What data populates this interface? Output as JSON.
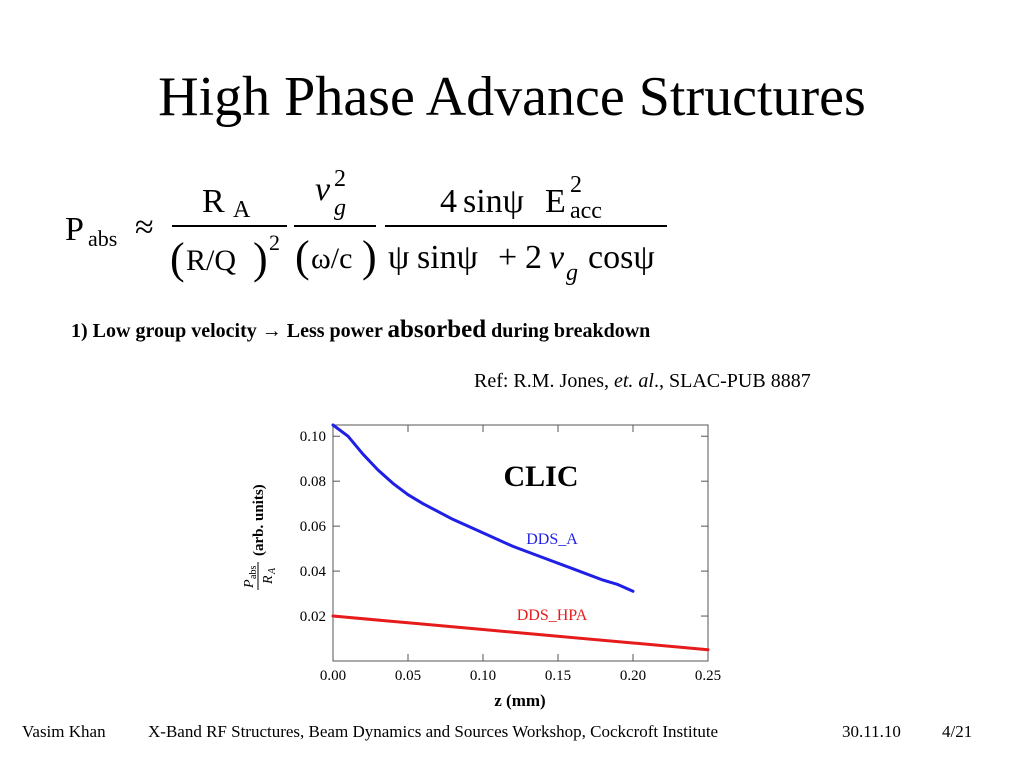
{
  "slide": {
    "title": "High Phase Advance Structures",
    "bullet_prefix": "1) Low group velocity → Less power ",
    "bullet_emph": "absorbed",
    "bullet_suffix": " during breakdown",
    "ref_prefix": "Ref: R.M. Jones, ",
    "ref_italic": "et. al",
    "ref_suffix": "., SLAC-PUB 8887"
  },
  "formula": {
    "lhs_main": "P",
    "lhs_sub": "abs",
    "approx": "≈",
    "f1_num_main": "R",
    "f1_num_sub": "A",
    "f1_den_lparen": "(",
    "f1_den_body": "R/Q",
    "f1_den_rparen": ")",
    "f1_den_sup": "2",
    "f2_num_main": "v",
    "f2_num_sup": "2",
    "f2_num_sub": "g",
    "f2_den_lparen": "(",
    "f2_den_body": "ω/c",
    "f2_den_rparen": ")",
    "f3_num_coef": "4",
    "f3_num_sin": "sinψ",
    "f3_num_E": "E",
    "f3_num_sup": "2",
    "f3_num_sub": "acc",
    "f3_den_psi": "ψ",
    "f3_den_sin": "sinψ",
    "f3_den_plus": "+",
    "f3_den_two": "2",
    "f3_den_v": "v",
    "f3_den_g": "g",
    "f3_den_cos": "cosψ"
  },
  "chart_data": {
    "type": "line",
    "title": "CLIC",
    "xlabel": "z (mm)",
    "ylabel_num_main": "P",
    "ylabel_num_sub": "abs",
    "ylabel_den_main": "R",
    "ylabel_den_sub": "A",
    "ylabel_rest": "(arb. units)",
    "xlim": [
      0.0,
      0.25
    ],
    "ylim": [
      0.0,
      0.105
    ],
    "x_ticks": [
      "0.00",
      "0.05",
      "0.10",
      "0.15",
      "0.20",
      "0.25"
    ],
    "y_ticks": [
      "0.02",
      "0.04",
      "0.06",
      "0.08",
      "0.10"
    ],
    "grid": false,
    "series": [
      {
        "name": "DDS_A",
        "color": "#1f1fe6",
        "x": [
          0.0,
          0.01,
          0.02,
          0.03,
          0.04,
          0.05,
          0.06,
          0.08,
          0.1,
          0.12,
          0.14,
          0.16,
          0.18,
          0.19,
          0.2
        ],
        "y": [
          0.105,
          0.1,
          0.092,
          0.085,
          0.079,
          0.074,
          0.07,
          0.063,
          0.057,
          0.051,
          0.046,
          0.041,
          0.036,
          0.034,
          0.031
        ]
      },
      {
        "name": "DDS_HPA",
        "color": "#e61c1c",
        "x": [
          0.0,
          0.05,
          0.1,
          0.15,
          0.2,
          0.25
        ],
        "y": [
          0.02,
          0.017,
          0.014,
          0.011,
          0.008,
          0.005
        ]
      }
    ]
  },
  "footer": {
    "author": "Vasim Khan",
    "event": "X-Band RF Structures, Beam Dynamics and Sources Workshop, Cockcroft Institute",
    "date": "30.11.10",
    "page": "4/21"
  }
}
